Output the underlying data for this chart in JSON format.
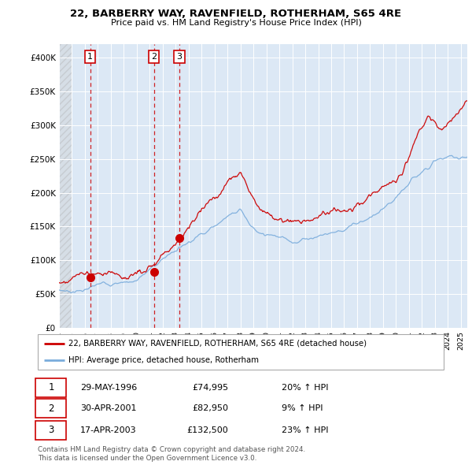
{
  "title_line1": "22, BARBERRY WAY, RAVENFIELD, ROTHERHAM, S65 4RE",
  "title_line2": "Price paid vs. HM Land Registry's House Price Index (HPI)",
  "legend_label1": "22, BARBERRY WAY, RAVENFIELD, ROTHERHAM, S65 4RE (detached house)",
  "legend_label2": "HPI: Average price, detached house, Rotherham",
  "red_color": "#cc0000",
  "blue_color": "#7aacdc",
  "transactions": [
    {
      "num": 1,
      "date": "29-MAY-1996",
      "price": 74995,
      "year": 1996.41,
      "pct": "20%",
      "dir": "↑"
    },
    {
      "num": 2,
      "date": "30-APR-2001",
      "price": 82950,
      "year": 2001.33,
      "pct": "9%",
      "dir": "↑"
    },
    {
      "num": 3,
      "date": "17-APR-2003",
      "price": 132500,
      "year": 2003.29,
      "pct": "23%",
      "dir": "↑"
    }
  ],
  "vline_color": "#cc0000",
  "footnote": "Contains HM Land Registry data © Crown copyright and database right 2024.\nThis data is licensed under the Open Government Licence v3.0.",
  "ylim": [
    0,
    420000
  ],
  "xlim_start": 1994.0,
  "xlim_end": 2025.5,
  "yticks": [
    0,
    50000,
    100000,
    150000,
    200000,
    250000,
    300000,
    350000,
    400000
  ],
  "ytick_labels": [
    "£0",
    "£50K",
    "£100K",
    "£150K",
    "£200K",
    "£250K",
    "£300K",
    "£350K",
    "£400K"
  ],
  "xticks": [
    1994,
    1995,
    1996,
    1997,
    1998,
    1999,
    2000,
    2001,
    2002,
    2003,
    2004,
    2005,
    2006,
    2007,
    2008,
    2009,
    2010,
    2011,
    2012,
    2013,
    2014,
    2015,
    2016,
    2017,
    2018,
    2019,
    2020,
    2021,
    2022,
    2023,
    2024,
    2025
  ],
  "plot_bg_color": "#dce8f5",
  "fig_bg_color": "#ffffff"
}
